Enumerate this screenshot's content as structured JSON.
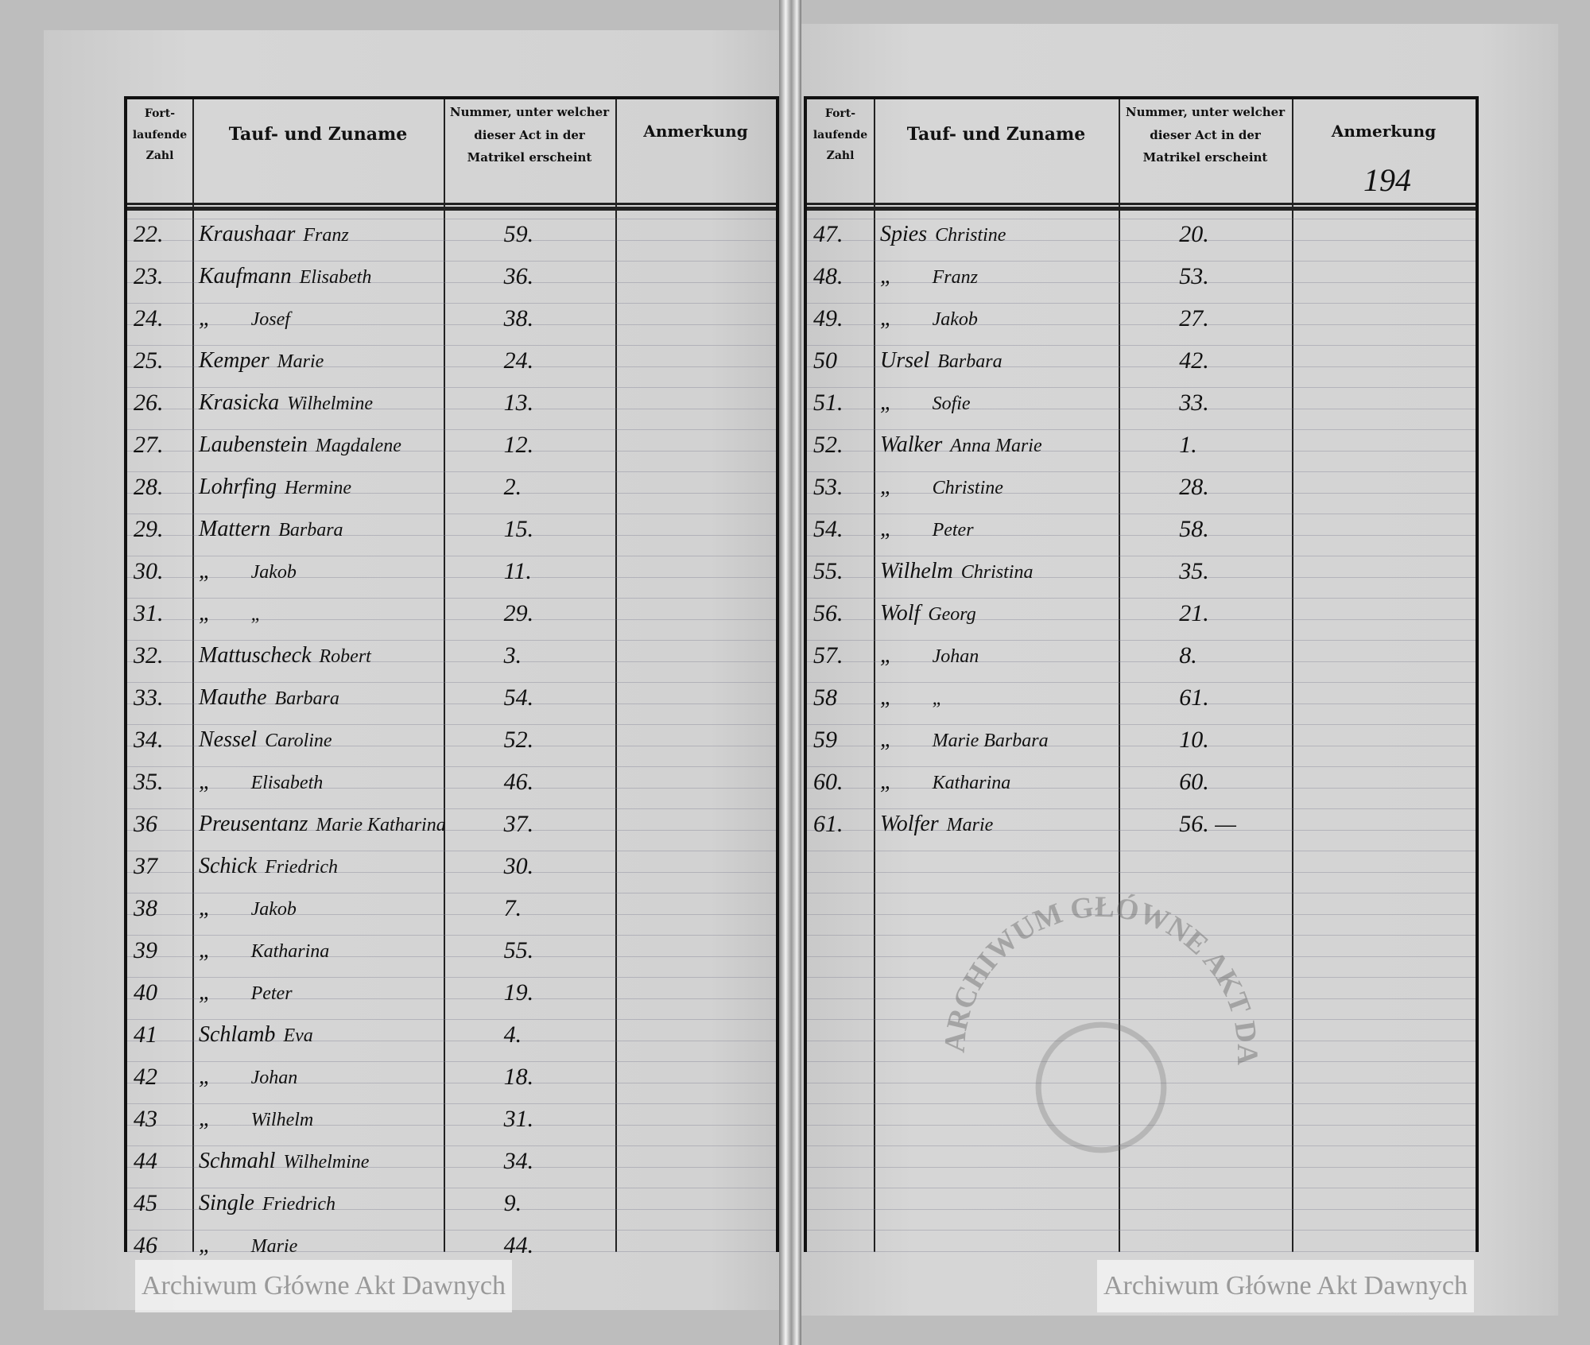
{
  "header": {
    "col_number": "Fort-\nlaufende\nZahl",
    "col_name": "Tauf- und Zuname",
    "col_act": "Nummer, unter welcher dieser Act in der Matrikel erscheint",
    "col_note": "Anmerkung"
  },
  "page_number": "194",
  "watermark": "Archiwum Główne Akt Dawnych",
  "stamp_text": "ARCHIWUM GŁÓWNE AKT DAWNYCH",
  "left_rows": [
    {
      "no": "22.",
      "surname": "Kraushaar",
      "given": "Franz",
      "act": "59."
    },
    {
      "no": "23.",
      "surname": "Kaufmann",
      "given": "Elisabeth",
      "act": "36."
    },
    {
      "no": "24.",
      "surname": "„",
      "given": "Josef",
      "act": "38."
    },
    {
      "no": "25.",
      "surname": "Kemper",
      "given": "Marie",
      "act": "24."
    },
    {
      "no": "26.",
      "surname": "Krasicka",
      "given": "Wilhelmine",
      "act": "13."
    },
    {
      "no": "27.",
      "surname": "Laubenstein",
      "given": "Magdalene",
      "act": "12."
    },
    {
      "no": "28.",
      "surname": "Lohrfing",
      "given": "Hermine",
      "act": "2."
    },
    {
      "no": "29.",
      "surname": "Mattern",
      "given": "Barbara",
      "act": "15."
    },
    {
      "no": "30.",
      "surname": "„",
      "given": "Jakob",
      "act": "11."
    },
    {
      "no": "31.",
      "surname": "„",
      "given": "„",
      "act": "29."
    },
    {
      "no": "32.",
      "surname": "Mattuscheck",
      "given": "Robert",
      "act": "3."
    },
    {
      "no": "33.",
      "surname": "Mauthe",
      "given": "Barbara",
      "act": "54."
    },
    {
      "no": "34.",
      "surname": "Nessel",
      "given": "Caroline",
      "act": "52."
    },
    {
      "no": "35.",
      "surname": "„",
      "given": "Elisabeth",
      "act": "46."
    },
    {
      "no": "36",
      "surname": "Preusentanz",
      "given": "Marie Katharina",
      "act": "37."
    },
    {
      "no": "37",
      "surname": "Schick",
      "given": "Friedrich",
      "act": "30."
    },
    {
      "no": "38",
      "surname": "„",
      "given": "Jakob",
      "act": "7."
    },
    {
      "no": "39",
      "surname": "„",
      "given": "Katharina",
      "act": "55."
    },
    {
      "no": "40",
      "surname": "„",
      "given": "Peter",
      "act": "19."
    },
    {
      "no": "41",
      "surname": "Schlamb",
      "given": "Eva",
      "act": "4."
    },
    {
      "no": "42",
      "surname": "„",
      "given": "Johan",
      "act": "18."
    },
    {
      "no": "43",
      "surname": "„",
      "given": "Wilhelm",
      "act": "31."
    },
    {
      "no": "44",
      "surname": "Schmahl",
      "given": "Wilhelmine",
      "act": "34."
    },
    {
      "no": "45",
      "surname": "Single",
      "given": "Friedrich",
      "act": "9."
    },
    {
      "no": "46",
      "surname": "„",
      "given": "Marie",
      "act": "44."
    }
  ],
  "right_rows": [
    {
      "no": "47.",
      "surname": "Spies",
      "given": "Christine",
      "act": "20."
    },
    {
      "no": "48.",
      "surname": "„",
      "given": "Franz",
      "act": "53."
    },
    {
      "no": "49.",
      "surname": "„",
      "given": "Jakob",
      "act": "27."
    },
    {
      "no": "50",
      "surname": "Ursel",
      "given": "Barbara",
      "act": "42."
    },
    {
      "no": "51.",
      "surname": "„",
      "given": "Sofie",
      "act": "33."
    },
    {
      "no": "52.",
      "surname": "Walker",
      "given": "Anna Marie",
      "act": "1."
    },
    {
      "no": "53.",
      "surname": "„",
      "given": "Christine",
      "act": "28."
    },
    {
      "no": "54.",
      "surname": "„",
      "given": "Peter",
      "act": "58."
    },
    {
      "no": "55.",
      "surname": "Wilhelm",
      "given": "Christina",
      "act": "35."
    },
    {
      "no": "56.",
      "surname": "Wolf",
      "given": "Georg",
      "act": "21."
    },
    {
      "no": "57.",
      "surname": "„",
      "given": "Johan",
      "act": "8."
    },
    {
      "no": "58",
      "surname": "„",
      "given": "„",
      "act": "61."
    },
    {
      "no": "59",
      "surname": "„",
      "given": "Marie Barbara",
      "act": "10."
    },
    {
      "no": "60.",
      "surname": "„",
      "given": "Katharina",
      "act": "60."
    },
    {
      "no": "61.",
      "surname": "Wolfer",
      "given": "Marie",
      "act": "56. —"
    }
  ]
}
